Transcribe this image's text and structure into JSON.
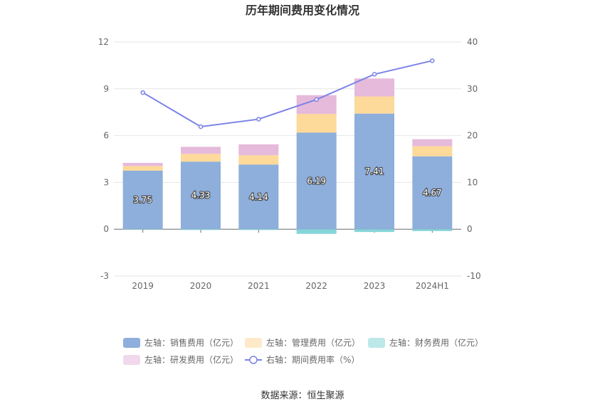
{
  "chart_data": {
    "type": "bar",
    "title": "历年期间费用变化情况",
    "categories": [
      "2019",
      "2020",
      "2021",
      "2022",
      "2023",
      "2024H1"
    ],
    "left_axis": {
      "ylim": [
        -3,
        12
      ],
      "ticks": [
        "-3",
        "0",
        "3",
        "6",
        "9",
        "12"
      ]
    },
    "right_axis": {
      "ylim": [
        -10,
        40
      ],
      "ticks": [
        "-10",
        "0",
        "10",
        "20",
        "30",
        "40"
      ]
    },
    "series": [
      {
        "name": "左轴：销售费用（亿元）",
        "type": "bar",
        "axis": "left",
        "color": "#8eaedb",
        "values": [
          3.75,
          4.33,
          4.14,
          6.19,
          7.41,
          4.67
        ],
        "labels": [
          "3.75",
          "4.33",
          "4.14",
          "6.19",
          "7.41",
          "4.67"
        ]
      },
      {
        "name": "左轴：管理费用（亿元）",
        "type": "bar",
        "axis": "left",
        "color": "#fdd99a",
        "values": [
          0.3,
          0.5,
          0.6,
          1.2,
          1.1,
          0.65
        ]
      },
      {
        "name": "左轴：财务费用（亿元）",
        "type": "bar",
        "axis": "left",
        "color": "#86d5d9",
        "values": [
          -0.02,
          -0.05,
          -0.05,
          -0.3,
          -0.18,
          -0.12
        ]
      },
      {
        "name": "左轴：研发费用（亿元）",
        "type": "bar",
        "axis": "left",
        "color": "#e5badb",
        "values": [
          0.2,
          0.45,
          0.7,
          1.2,
          1.15,
          0.45
        ]
      },
      {
        "name": "右轴：期间费用率（%）",
        "type": "line",
        "axis": "right",
        "color": "#7b83e6",
        "values": [
          29.2,
          21.9,
          23.5,
          27.7,
          33.1,
          36.0
        ]
      }
    ]
  },
  "source": "数据来源：恒生聚源"
}
